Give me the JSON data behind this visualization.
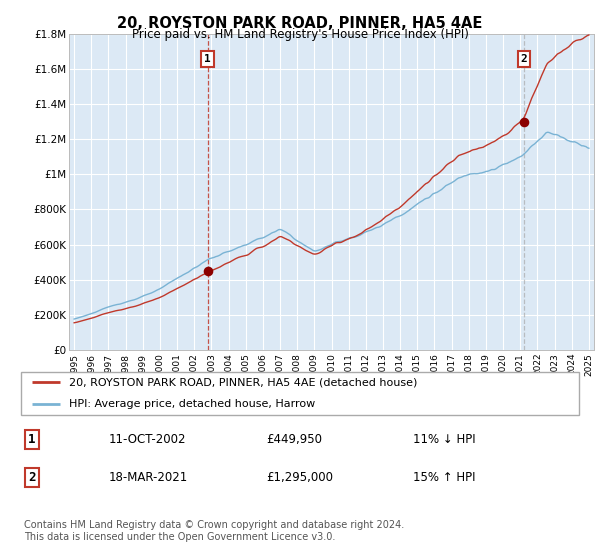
{
  "title": "20, ROYSTON PARK ROAD, PINNER, HA5 4AE",
  "subtitle": "Price paid vs. HM Land Registry's House Price Index (HPI)",
  "ylim": [
    0,
    1800000
  ],
  "yticks": [
    0,
    200000,
    400000,
    600000,
    800000,
    1000000,
    1200000,
    1400000,
    1600000,
    1800000
  ],
  "ytick_labels": [
    "£0",
    "£200K",
    "£400K",
    "£600K",
    "£800K",
    "£1M",
    "£1.2M",
    "£1.4M",
    "£1.6M",
    "£1.8M"
  ],
  "sale1_year": 2002.78,
  "sale1_price": 449950,
  "sale2_year": 2021.21,
  "sale2_price": 1295000,
  "hpi_color": "#7ab3d4",
  "price_color": "#c0392b",
  "vline1_color": "#c0392b",
  "vline2_color": "#aaaaaa",
  "dot_color": "#8b0000",
  "chart_bg": "#dce9f5",
  "fig_bg": "#ffffff",
  "grid_color": "#ffffff",
  "annotation_edge": "#c0392b",
  "legend_label_price": "20, ROYSTON PARK ROAD, PINNER, HA5 4AE (detached house)",
  "legend_label_hpi": "HPI: Average price, detached house, Harrow",
  "annotation1_text": "1",
  "annotation2_text": "2",
  "footer1": "Contains HM Land Registry data © Crown copyright and database right 2024.",
  "footer2": "This data is licensed under the Open Government Licence v3.0.",
  "table_row1": [
    "1",
    "11-OCT-2002",
    "£449,950",
    "11% ↓ HPI"
  ],
  "table_row2": [
    "2",
    "18-MAR-2021",
    "£1,295,000",
    "15% ↑ HPI"
  ]
}
